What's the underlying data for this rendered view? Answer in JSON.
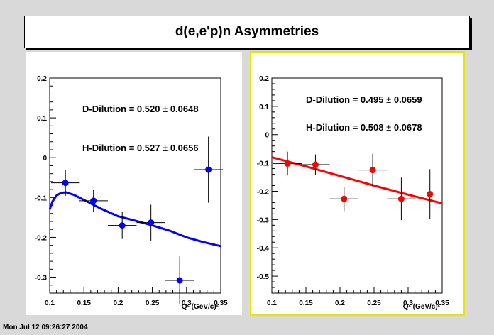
{
  "title": "d(e,e'p)n Asymmetries",
  "footer": "Mon Jul 12 09:26:27 2004",
  "colors": {
    "left": "#0000ff",
    "right": "#ff0000",
    "highlight": "#ffff00"
  },
  "chart_data": [
    {
      "type": "scatter",
      "xlabel": "Q² (GeV/c)²",
      "xlim": [
        0.1,
        0.35
      ],
      "ylim": [
        -0.34,
        0.2
      ],
      "xticks": [
        0.1,
        0.15,
        0.2,
        0.25,
        0.3,
        0.35
      ],
      "yticks": [
        -0.3,
        -0.2,
        -0.1,
        0,
        0.1,
        0.2
      ],
      "annotations": [
        {
          "label": "D-Dilution = 0.520 ",
          "pm": "±",
          "value": " 0.0648"
        },
        {
          "label": "H-Dilution = 0.527 ",
          "pm": "±",
          "value": " 0.0656"
        }
      ],
      "points": [
        {
          "x": 0.123,
          "y": -0.063,
          "xerr": 0.021,
          "yerr": 0.033
        },
        {
          "x": 0.164,
          "y": -0.108,
          "xerr": 0.021,
          "yerr": 0.028
        },
        {
          "x": 0.206,
          "y": -0.17,
          "xerr": 0.021,
          "yerr": 0.034
        },
        {
          "x": 0.248,
          "y": -0.163,
          "xerr": 0.021,
          "yerr": 0.045
        },
        {
          "x": 0.29,
          "y": -0.308,
          "xerr": 0.021,
          "yerr": 0.06
        },
        {
          "x": 0.332,
          "y": -0.03,
          "xerr": 0.021,
          "yerr": 0.083
        }
      ],
      "curve": [
        {
          "x": 0.1,
          "y": -0.13
        },
        {
          "x": 0.104,
          "y": -0.11
        },
        {
          "x": 0.11,
          "y": -0.095
        },
        {
          "x": 0.117,
          "y": -0.088
        },
        {
          "x": 0.124,
          "y": -0.087
        },
        {
          "x": 0.135,
          "y": -0.093
        },
        {
          "x": 0.15,
          "y": -0.106
        },
        {
          "x": 0.175,
          "y": -0.128
        },
        {
          "x": 0.2,
          "y": -0.147
        },
        {
          "x": 0.225,
          "y": -0.158
        },
        {
          "x": 0.25,
          "y": -0.17
        },
        {
          "x": 0.275,
          "y": -0.183
        },
        {
          "x": 0.3,
          "y": -0.2
        },
        {
          "x": 0.325,
          "y": -0.212
        },
        {
          "x": 0.35,
          "y": -0.222
        }
      ]
    },
    {
      "type": "scatter",
      "xlabel": "Q² (GeV/c)²",
      "xlim": [
        0.1,
        0.35
      ],
      "ylim": [
        -0.56,
        0.2
      ],
      "xticks": [
        0.1,
        0.15,
        0.2,
        0.25,
        0.3,
        0.35
      ],
      "yticks": [
        -0.5,
        -0.4,
        -0.3,
        -0.2,
        -0.1,
        0,
        0.1,
        0.2
      ],
      "annotations": [
        {
          "label": "D-Dilution = 0.495 ",
          "pm": "±",
          "value": " 0.0659"
        },
        {
          "label": "H-Dilution = 0.508 ",
          "pm": "±",
          "value": " 0.0678"
        }
      ],
      "points": [
        {
          "x": 0.123,
          "y": -0.102,
          "xerr": 0.021,
          "yerr": 0.042
        },
        {
          "x": 0.164,
          "y": -0.106,
          "xerr": 0.021,
          "yerr": 0.036
        },
        {
          "x": 0.206,
          "y": -0.227,
          "xerr": 0.021,
          "yerr": 0.043
        },
        {
          "x": 0.248,
          "y": -0.125,
          "xerr": 0.021,
          "yerr": 0.057
        },
        {
          "x": 0.29,
          "y": -0.227,
          "xerr": 0.021,
          "yerr": 0.075
        },
        {
          "x": 0.332,
          "y": -0.21,
          "xerr": 0.021,
          "yerr": 0.088
        }
      ],
      "curve": [
        {
          "x": 0.1,
          "y": -0.08
        },
        {
          "x": 0.15,
          "y": -0.112
        },
        {
          "x": 0.2,
          "y": -0.146
        },
        {
          "x": 0.25,
          "y": -0.18
        },
        {
          "x": 0.3,
          "y": -0.212
        },
        {
          "x": 0.35,
          "y": -0.243
        }
      ]
    }
  ]
}
